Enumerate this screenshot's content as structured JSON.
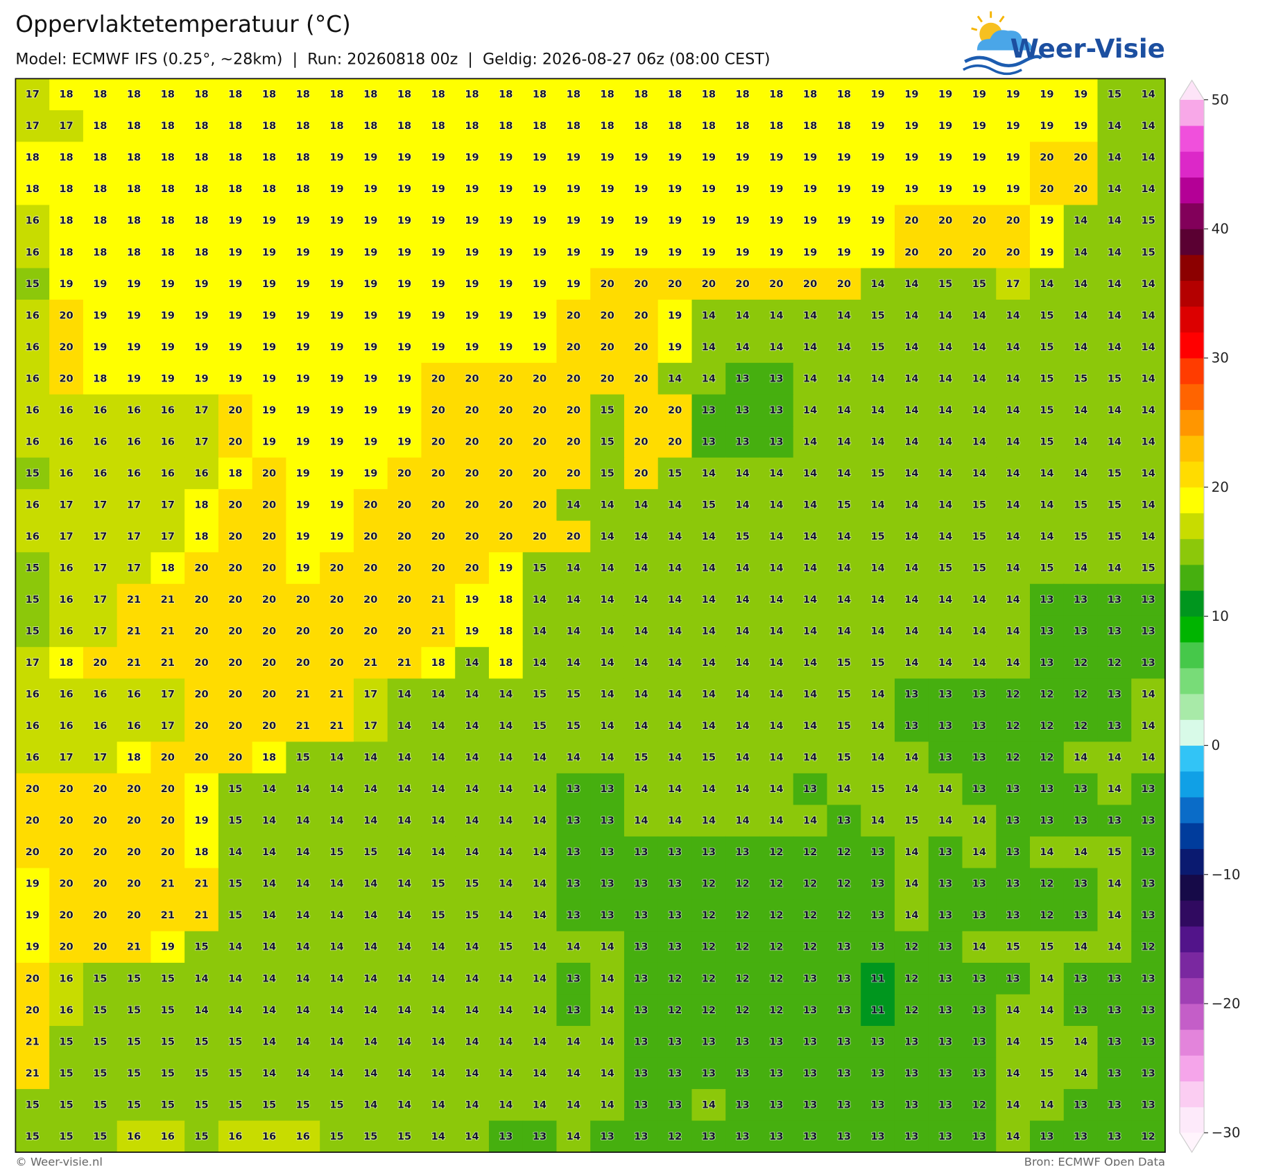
{
  "header": {
    "title": "Oppervlaktetemperatuur (°C)",
    "subtitle": "Model: ECMWF IFS (0.25°, ~28km)  |  Run: 20260818 00z  |  Geldig: 2026-08-27 06z (08:00 CEST)"
  },
  "logo": {
    "text": "Weer-Visie"
  },
  "grid": {
    "rows": [
      [
        17,
        18,
        18,
        18,
        18,
        18,
        18,
        18,
        18,
        18,
        18,
        18,
        18,
        18,
        18,
        18,
        18,
        18,
        18,
        18,
        18,
        18,
        18,
        18,
        18,
        19,
        19,
        19,
        19,
        19,
        19,
        19,
        15,
        14
      ],
      [
        17,
        17,
        18,
        18,
        18,
        18,
        18,
        18,
        18,
        18,
        18,
        18,
        18,
        18,
        18,
        18,
        18,
        18,
        18,
        18,
        18,
        18,
        18,
        18,
        18,
        19,
        19,
        19,
        19,
        19,
        19,
        19,
        14,
        14
      ],
      [
        18,
        18,
        18,
        18,
        18,
        18,
        18,
        18,
        18,
        19,
        19,
        19,
        19,
        19,
        19,
        19,
        19,
        19,
        19,
        19,
        19,
        19,
        19,
        19,
        19,
        19,
        19,
        19,
        19,
        19,
        20,
        20,
        14,
        14
      ],
      [
        18,
        18,
        18,
        18,
        18,
        18,
        18,
        18,
        18,
        19,
        19,
        19,
        19,
        19,
        19,
        19,
        19,
        19,
        19,
        19,
        19,
        19,
        19,
        19,
        19,
        19,
        19,
        19,
        19,
        19,
        20,
        20,
        14,
        14
      ],
      [
        16,
        18,
        18,
        18,
        18,
        18,
        19,
        19,
        19,
        19,
        19,
        19,
        19,
        19,
        19,
        19,
        19,
        19,
        19,
        19,
        19,
        19,
        19,
        19,
        19,
        19,
        20,
        20,
        20,
        20,
        19,
        14,
        14,
        15
      ],
      [
        16,
        18,
        18,
        18,
        18,
        18,
        19,
        19,
        19,
        19,
        19,
        19,
        19,
        19,
        19,
        19,
        19,
        19,
        19,
        19,
        19,
        19,
        19,
        19,
        19,
        19,
        20,
        20,
        20,
        20,
        19,
        14,
        14,
        15
      ],
      [
        15,
        19,
        19,
        19,
        19,
        19,
        19,
        19,
        19,
        19,
        19,
        19,
        19,
        19,
        19,
        19,
        19,
        20,
        20,
        20,
        20,
        20,
        20,
        20,
        20,
        14,
        14,
        15,
        15,
        17,
        14,
        14,
        14,
        14
      ],
      [
        16,
        20,
        19,
        19,
        19,
        19,
        19,
        19,
        19,
        19,
        19,
        19,
        19,
        19,
        19,
        19,
        20,
        20,
        20,
        19,
        14,
        14,
        14,
        14,
        14,
        15,
        14,
        14,
        14,
        14,
        15,
        14,
        14,
        14
      ],
      [
        16,
        20,
        19,
        19,
        19,
        19,
        19,
        19,
        19,
        19,
        19,
        19,
        19,
        19,
        19,
        19,
        20,
        20,
        20,
        19,
        14,
        14,
        14,
        14,
        14,
        15,
        14,
        14,
        14,
        14,
        15,
        14,
        14,
        14
      ],
      [
        16,
        20,
        18,
        19,
        19,
        19,
        19,
        19,
        19,
        19,
        19,
        19,
        20,
        20,
        20,
        20,
        20,
        20,
        20,
        14,
        14,
        13,
        13,
        14,
        14,
        14,
        14,
        14,
        14,
        14,
        15,
        15,
        15,
        14
      ],
      [
        16,
        16,
        16,
        16,
        16,
        17,
        20,
        19,
        19,
        19,
        19,
        19,
        20,
        20,
        20,
        20,
        20,
        15,
        20,
        20,
        13,
        13,
        13,
        14,
        14,
        14,
        14,
        14,
        14,
        14,
        15,
        14,
        14,
        14
      ],
      [
        16,
        16,
        16,
        16,
        16,
        17,
        20,
        19,
        19,
        19,
        19,
        19,
        20,
        20,
        20,
        20,
        20,
        15,
        20,
        20,
        13,
        13,
        13,
        14,
        14,
        14,
        14,
        14,
        14,
        14,
        15,
        14,
        14,
        14
      ],
      [
        15,
        16,
        16,
        16,
        16,
        16,
        18,
        20,
        19,
        19,
        19,
        20,
        20,
        20,
        20,
        20,
        20,
        15,
        20,
        15,
        14,
        14,
        14,
        14,
        14,
        15,
        14,
        14,
        14,
        14,
        14,
        14,
        15,
        14
      ],
      [
        16,
        17,
        17,
        17,
        17,
        18,
        20,
        20,
        19,
        19,
        20,
        20,
        20,
        20,
        20,
        20,
        14,
        14,
        14,
        14,
        15,
        14,
        14,
        14,
        15,
        14,
        14,
        14,
        15,
        14,
        14,
        15,
        15,
        14
      ],
      [
        16,
        17,
        17,
        17,
        17,
        18,
        20,
        20,
        19,
        19,
        20,
        20,
        20,
        20,
        20,
        20,
        20,
        14,
        14,
        14,
        14,
        15,
        14,
        14,
        14,
        15,
        14,
        14,
        15,
        14,
        14,
        15,
        15,
        14
      ],
      [
        15,
        16,
        17,
        17,
        18,
        20,
        20,
        20,
        19,
        20,
        20,
        20,
        20,
        20,
        19,
        15,
        14,
        14,
        14,
        14,
        14,
        14,
        14,
        14,
        14,
        14,
        14,
        15,
        15,
        14,
        15,
        14,
        14,
        15
      ],
      [
        15,
        16,
        17,
        21,
        21,
        20,
        20,
        20,
        20,
        20,
        20,
        20,
        21,
        19,
        18,
        14,
        14,
        14,
        14,
        14,
        14,
        14,
        14,
        14,
        14,
        14,
        14,
        14,
        14,
        14,
        13,
        13,
        13,
        13
      ],
      [
        15,
        16,
        17,
        21,
        21,
        20,
        20,
        20,
        20,
        20,
        20,
        20,
        21,
        19,
        18,
        14,
        14,
        14,
        14,
        14,
        14,
        14,
        14,
        14,
        14,
        14,
        14,
        14,
        14,
        14,
        13,
        13,
        13,
        13
      ],
      [
        17,
        18,
        20,
        21,
        21,
        20,
        20,
        20,
        20,
        20,
        21,
        21,
        18,
        14,
        18,
        14,
        14,
        14,
        14,
        14,
        14,
        14,
        14,
        14,
        15,
        15,
        14,
        14,
        14,
        14,
        13,
        12,
        12,
        13
      ],
      [
        16,
        16,
        16,
        16,
        17,
        20,
        20,
        20,
        21,
        21,
        17,
        14,
        14,
        14,
        14,
        15,
        15,
        14,
        14,
        14,
        14,
        14,
        14,
        14,
        15,
        14,
        13,
        13,
        13,
        12,
        12,
        12,
        13,
        14
      ],
      [
        16,
        16,
        16,
        16,
        17,
        20,
        20,
        20,
        21,
        21,
        17,
        14,
        14,
        14,
        14,
        15,
        15,
        14,
        14,
        14,
        14,
        14,
        14,
        14,
        15,
        14,
        13,
        13,
        13,
        12,
        12,
        12,
        13,
        14
      ],
      [
        16,
        17,
        17,
        18,
        20,
        20,
        20,
        18,
        15,
        14,
        14,
        14,
        14,
        14,
        14,
        14,
        14,
        14,
        15,
        14,
        15,
        14,
        14,
        14,
        15,
        14,
        14,
        13,
        13,
        12,
        12,
        14,
        14,
        14
      ],
      [
        20,
        20,
        20,
        20,
        20,
        19,
        15,
        14,
        14,
        14,
        14,
        14,
        14,
        14,
        14,
        14,
        13,
        13,
        14,
        14,
        14,
        14,
        14,
        13,
        14,
        15,
        14,
        14,
        13,
        13,
        13,
        13,
        14,
        13
      ],
      [
        20,
        20,
        20,
        20,
        20,
        19,
        15,
        14,
        14,
        14,
        14,
        14,
        14,
        14,
        14,
        14,
        13,
        13,
        14,
        14,
        14,
        14,
        14,
        14,
        13,
        14,
        15,
        14,
        14,
        13,
        13,
        13,
        13,
        13
      ],
      [
        20,
        20,
        20,
        20,
        20,
        18,
        14,
        14,
        14,
        15,
        15,
        14,
        14,
        14,
        14,
        14,
        13,
        13,
        13,
        13,
        13,
        13,
        12,
        12,
        12,
        13,
        14,
        13,
        14,
        13,
        14,
        14,
        15,
        13
      ],
      [
        19,
        20,
        20,
        20,
        21,
        21,
        15,
        14,
        14,
        14,
        14,
        14,
        15,
        15,
        14,
        14,
        13,
        13,
        13,
        13,
        12,
        12,
        12,
        12,
        12,
        13,
        14,
        13,
        13,
        13,
        12,
        13,
        14,
        13
      ],
      [
        19,
        20,
        20,
        20,
        21,
        21,
        15,
        14,
        14,
        14,
        14,
        14,
        15,
        15,
        14,
        14,
        13,
        13,
        13,
        13,
        12,
        12,
        12,
        12,
        12,
        13,
        14,
        13,
        13,
        13,
        12,
        13,
        14,
        13
      ],
      [
        19,
        20,
        20,
        21,
        19,
        15,
        14,
        14,
        14,
        14,
        14,
        14,
        14,
        14,
        15,
        14,
        14,
        14,
        13,
        13,
        12,
        12,
        12,
        12,
        13,
        13,
        12,
        13,
        14,
        15,
        15,
        14,
        14,
        12
      ],
      [
        20,
        16,
        15,
        15,
        15,
        14,
        14,
        14,
        14,
        14,
        14,
        14,
        14,
        14,
        14,
        14,
        13,
        14,
        13,
        12,
        12,
        12,
        12,
        13,
        13,
        11,
        12,
        13,
        13,
        13,
        14,
        13,
        13,
        13
      ],
      [
        20,
        16,
        15,
        15,
        15,
        14,
        14,
        14,
        14,
        14,
        14,
        14,
        14,
        14,
        14,
        14,
        13,
        14,
        13,
        12,
        12,
        12,
        12,
        13,
        13,
        11,
        12,
        13,
        13,
        14,
        14,
        13,
        13,
        13
      ],
      [
        21,
        15,
        15,
        15,
        15,
        15,
        15,
        14,
        14,
        14,
        14,
        14,
        14,
        14,
        14,
        14,
        14,
        14,
        13,
        13,
        13,
        13,
        13,
        13,
        13,
        13,
        13,
        13,
        13,
        14,
        15,
        14,
        13,
        13
      ],
      [
        21,
        15,
        15,
        15,
        15,
        15,
        15,
        14,
        14,
        14,
        14,
        14,
        14,
        14,
        14,
        14,
        14,
        14,
        13,
        13,
        13,
        13,
        13,
        13,
        13,
        13,
        13,
        13,
        13,
        14,
        15,
        14,
        13,
        13
      ],
      [
        15,
        15,
        15,
        15,
        15,
        15,
        15,
        15,
        15,
        15,
        14,
        14,
        14,
        14,
        14,
        14,
        14,
        14,
        13,
        13,
        14,
        13,
        13,
        13,
        13,
        13,
        13,
        13,
        12,
        14,
        14,
        13,
        13,
        13
      ],
      [
        15,
        15,
        15,
        16,
        16,
        15,
        16,
        16,
        16,
        15,
        15,
        15,
        14,
        14,
        13,
        13,
        14,
        13,
        13,
        12,
        13,
        13,
        13,
        13,
        13,
        13,
        13,
        13,
        13,
        14,
        13,
        13,
        13,
        12
      ]
    ]
  },
  "colorbar": {
    "range": [
      -30,
      50
    ],
    "ticks": [
      {
        "value": -30,
        "label": "−30"
      },
      {
        "value": -20,
        "label": "−20"
      },
      {
        "value": -10,
        "label": "−10"
      },
      0,
      10,
      20,
      30,
      40,
      50
    ],
    "colors": [
      "#fdeafa",
      "#fbcdf2",
      "#f5a5ea",
      "#e384db",
      "#c45ec8",
      "#a040b4",
      "#7a28a0",
      "#52148a",
      "#300a60",
      "#160a48",
      "#0a1a70",
      "#003c9c",
      "#0a6cc8",
      "#10a0e6",
      "#32c4f6",
      "#d8fae8",
      "#a8eaa8",
      "#78dc78",
      "#46c84a",
      "#00b400",
      "#00961e",
      "#46af0f",
      "#8cc80a",
      "#c8dc00",
      "#ffff00",
      "#ffdc00",
      "#ffc000",
      "#ff9600",
      "#ff6400",
      "#ff3c00",
      "#ff0000",
      "#dc0000",
      "#b40000",
      "#8c0000",
      "#5a0032",
      "#82005a",
      "#b40096",
      "#dc28c8",
      "#f050dc",
      "#f8a8e8"
    ],
    "under_color": "#fff4fc",
    "over_color": "#fde4f8"
  },
  "footer": {
    "left": "© Weer-visie.nl",
    "right": "Bron: ECMWF Open Data"
  }
}
